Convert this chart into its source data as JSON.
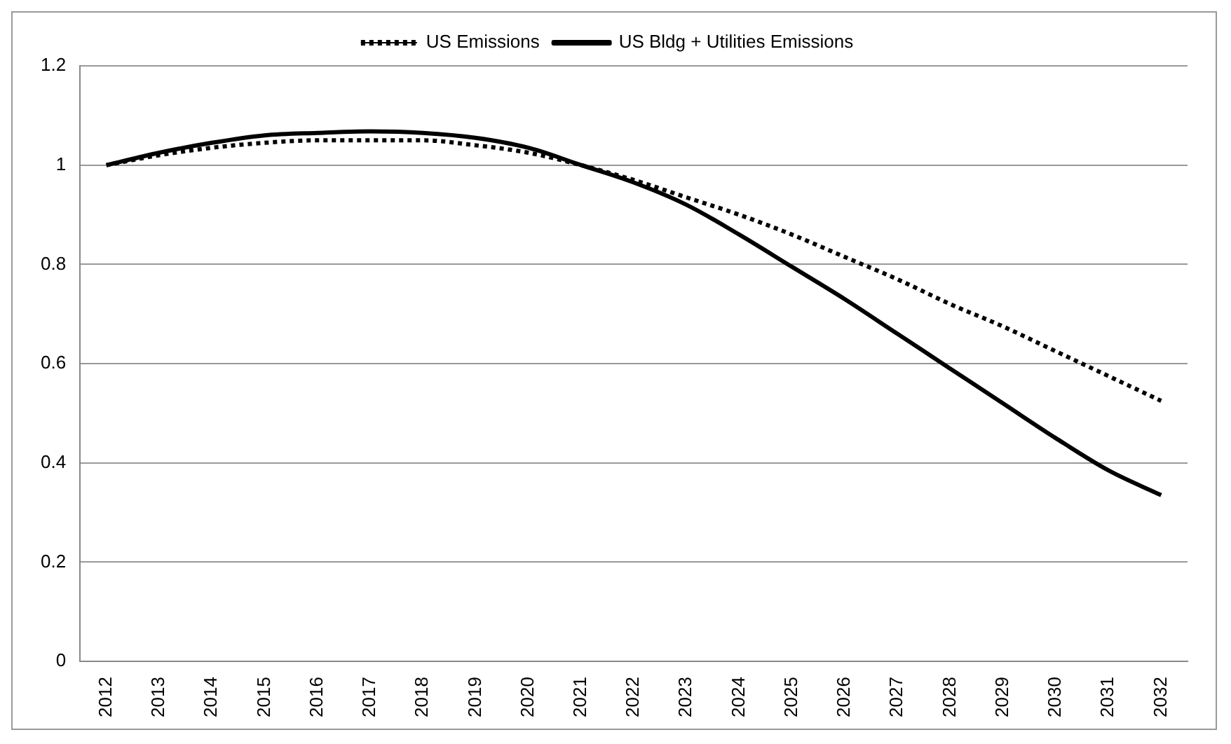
{
  "chart_data": {
    "type": "line",
    "categories": [
      "2012",
      "2013",
      "2014",
      "2015",
      "2016",
      "2017",
      "2018",
      "2019",
      "2020",
      "2021",
      "2022",
      "2023",
      "2024",
      "2025",
      "2026",
      "2027",
      "2028",
      "2029",
      "2030",
      "2031",
      "2032"
    ],
    "series": [
      {
        "name": "US Emissions",
        "color": "#000000",
        "line_style": "dotted",
        "values": [
          1.0,
          1.02,
          1.035,
          1.045,
          1.05,
          1.05,
          1.05,
          1.04,
          1.025,
          1.0,
          0.97,
          0.935,
          0.9,
          0.86,
          0.815,
          0.77,
          0.72,
          0.675,
          0.625,
          0.575,
          0.525
        ]
      },
      {
        "name": "US Bldg + Utilities Emissions",
        "color": "#000000",
        "line_style": "solid",
        "values": [
          1.0,
          1.025,
          1.045,
          1.06,
          1.065,
          1.068,
          1.065,
          1.055,
          1.035,
          1.0,
          0.965,
          0.92,
          0.86,
          0.795,
          0.73,
          0.66,
          0.59,
          0.52,
          0.45,
          0.385,
          0.335
        ]
      }
    ],
    "ylim": [
      0,
      1.2
    ],
    "yticks": [
      0,
      0.2,
      0.4,
      0.6,
      0.8,
      1,
      1.2
    ],
    "grid": "y",
    "legend": "top",
    "marker": "none"
  }
}
